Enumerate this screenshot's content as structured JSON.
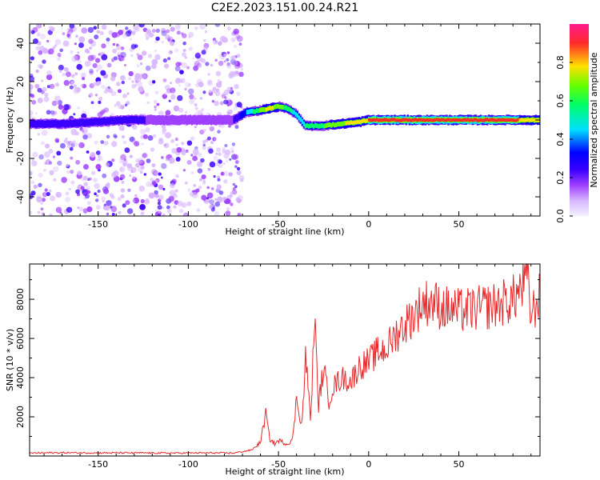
{
  "title": "C2E2.2023.151.00.24.R21",
  "colors": {
    "snr_line": "#e8292b",
    "axes": "#000000",
    "colormap": [
      "#f2f2ff",
      "#d8b6ff",
      "#a040ff",
      "#3a00ff",
      "#0000ff",
      "#00e0ff",
      "#00ff66",
      "#66ff00",
      "#ffe000",
      "#ff2a2a",
      "#ff1a8c"
    ]
  },
  "chart_data": [
    {
      "type": "heatmap",
      "name": "spectrogram",
      "xlabel": "Height of straight line (km)",
      "ylabel": "Frequency (Hz)",
      "xlim": [
        -188,
        95
      ],
      "ylim": [
        -50,
        50
      ],
      "xticks": [
        -150,
        -100,
        -50,
        0,
        50
      ],
      "yticks": [
        -40,
        -20,
        0,
        20,
        40
      ],
      "grid": false,
      "colorbar": {
        "label": "Normalized spectral amplitude",
        "range": [
          0,
          1
        ],
        "ticks": [
          0.0,
          0.2,
          0.4,
          0.6,
          0.8
        ]
      },
      "ridge": {
        "description_points": [
          [
            -185,
            -2
          ],
          [
            -170,
            -2
          ],
          [
            -150,
            -1
          ],
          [
            -135,
            0
          ],
          [
            -110,
            0
          ],
          [
            -90,
            0
          ],
          [
            -75,
            0
          ],
          [
            -68,
            4
          ],
          [
            -60,
            5
          ],
          [
            -50,
            7
          ],
          [
            -45,
            6
          ],
          [
            -40,
            3
          ],
          [
            -35,
            -3
          ],
          [
            -25,
            -3
          ],
          [
            -15,
            -2
          ],
          [
            -5,
            -1
          ],
          [
            0,
            0
          ],
          [
            20,
            0
          ],
          [
            50,
            0
          ],
          [
            80,
            0
          ],
          [
            95,
            0
          ]
        ],
        "peak_amplitude": [
          [
            -185,
            0.3
          ],
          [
            -150,
            0.35
          ],
          [
            -110,
            0.2
          ],
          [
            -75,
            0.25
          ],
          [
            -55,
            0.8
          ],
          [
            -40,
            0.5
          ],
          [
            -20,
            0.7
          ],
          [
            0,
            0.85
          ],
          [
            30,
            0.9
          ],
          [
            60,
            0.95
          ],
          [
            95,
            0.8
          ]
        ]
      },
      "noise_region_x": [
        -188,
        -70
      ]
    },
    {
      "type": "line",
      "name": "snr",
      "xlabel": "Height of straight line (km)",
      "ylabel": "SNR (10 * v/v)",
      "xlim": [
        -188,
        95
      ],
      "ylim": [
        0,
        9800
      ],
      "xticks": [
        -150,
        -100,
        -50,
        0,
        50
      ],
      "yticks": [
        2000,
        4000,
        6000,
        8000
      ],
      "grid": false,
      "series": [
        {
          "values_x": [
            -188,
            -170,
            -150,
            -130,
            -110,
            -90,
            -75,
            -65,
            -60,
            -57,
            -55,
            -52,
            -50,
            -45,
            -42,
            -40,
            -37,
            -35,
            -32,
            -30,
            -28,
            -25,
            -22,
            -20,
            -15,
            -10,
            -5,
            0,
            5,
            10,
            15,
            20,
            25,
            30,
            35,
            40,
            50,
            60,
            70,
            80,
            85,
            88,
            90,
            95
          ],
          "values_y": [
            150,
            170,
            160,
            160,
            150,
            160,
            150,
            300,
            700,
            2200,
            900,
            600,
            800,
            600,
            900,
            3000,
            1500,
            5000,
            1800,
            7500,
            2500,
            4500,
            2800,
            3500,
            4000,
            3800,
            4600,
            4800,
            5300,
            5500,
            6200,
            6700,
            7200,
            7800,
            7900,
            7600,
            7400,
            7500,
            7700,
            8000,
            8600,
            9100,
            7200,
            8200
          ]
        }
      ]
    }
  ]
}
